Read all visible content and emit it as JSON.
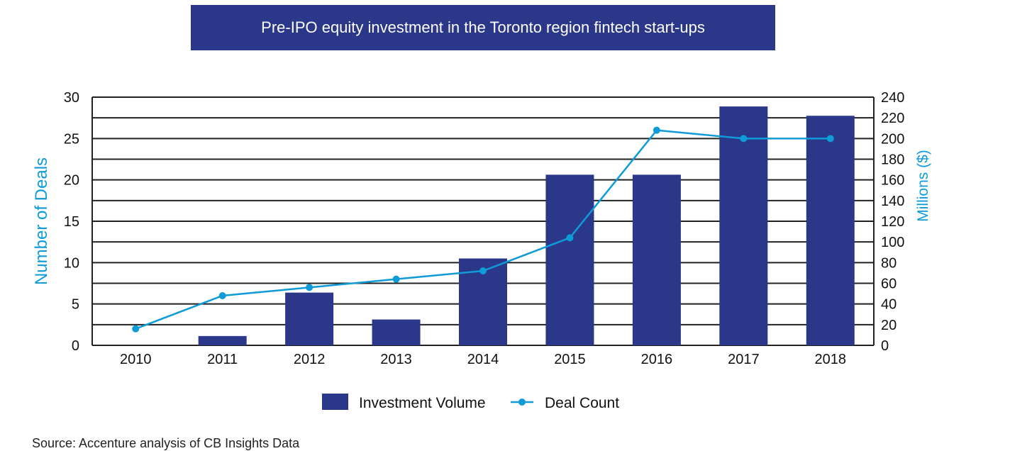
{
  "chart_data": {
    "type": "bar",
    "title": "Pre-IPO equity investment in the Toronto region fintech start-ups",
    "categories": [
      "2010",
      "2011",
      "2012",
      "2013",
      "2014",
      "2015",
      "2016",
      "2017",
      "2018"
    ],
    "series": [
      {
        "name": "Investment Volume",
        "type": "bar",
        "axis": "right",
        "values": [
          0,
          9,
          51,
          25,
          84,
          165,
          165,
          231,
          222
        ]
      },
      {
        "name": "Deal Count",
        "type": "line",
        "axis": "left",
        "values": [
          2,
          6,
          7,
          8,
          9,
          13,
          26,
          25,
          25
        ]
      }
    ],
    "ylabel": "Number of Deals",
    "ylim": [
      0,
      30
    ],
    "yticks": [
      "0",
      "5",
      "10",
      "15",
      "20",
      "25",
      "30"
    ],
    "y2label": "Millions ($)",
    "y2lim": [
      0,
      240
    ],
    "y2ticks": [
      "0",
      "20",
      "40",
      "60",
      "80",
      "100",
      "120",
      "140",
      "160",
      "180",
      "200",
      "220",
      "240"
    ],
    "grid": true,
    "legend_position": "bottom",
    "colors": {
      "bar": "#2b3789",
      "line": "#0e9bd8",
      "header": "#2b3789"
    }
  },
  "source": "Source: Accenture analysis of CB Insights Data"
}
